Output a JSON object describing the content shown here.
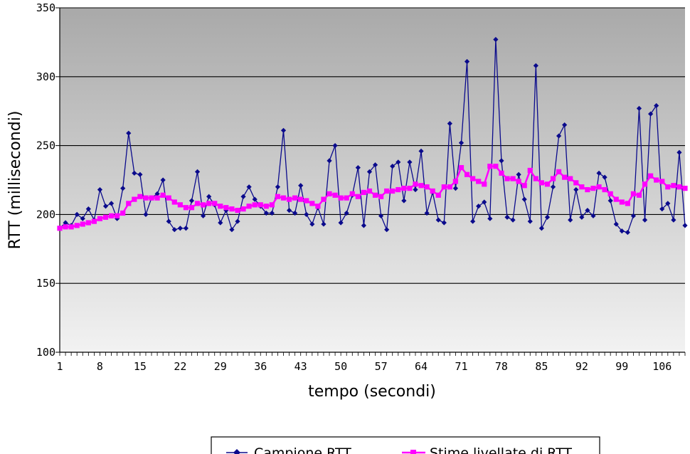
{
  "chart_data": {
    "type": "line",
    "title": "",
    "xlabel": "tempo (secondi)",
    "ylabel": "RTT (millisecondi)",
    "ylim": [
      100,
      350
    ],
    "yticks": [
      100,
      150,
      200,
      250,
      300,
      350
    ],
    "xtick_labels": [
      "1",
      "8",
      "15",
      "22",
      "29",
      "36",
      "43",
      "50",
      "57",
      "64",
      "71",
      "78",
      "85",
      "92",
      "99",
      "106"
    ],
    "grid": "horizontal",
    "legend_position": "bottom",
    "background": "vertical gradient gray to white",
    "colors": {
      "sample": "#0a0a8c",
      "estimate": "#ff00ff",
      "plot_bg_top": "#a9a9a9",
      "plot_bg_bottom": "#f2f2f2"
    },
    "x": [
      1,
      2,
      3,
      4,
      5,
      6,
      7,
      8,
      9,
      10,
      11,
      12,
      13,
      14,
      15,
      16,
      17,
      18,
      19,
      20,
      21,
      22,
      23,
      24,
      25,
      26,
      27,
      28,
      29,
      30,
      31,
      32,
      33,
      34,
      35,
      36,
      37,
      38,
      39,
      40,
      41,
      42,
      43,
      44,
      45,
      46,
      47,
      48,
      49,
      50,
      51,
      52,
      53,
      54,
      55,
      56,
      57,
      58,
      59,
      60,
      61,
      62,
      63,
      64,
      65,
      66,
      67,
      68,
      69,
      70,
      71,
      72,
      73,
      74,
      75,
      76,
      77,
      78,
      79,
      80,
      81,
      82,
      83,
      84,
      85,
      86,
      87,
      88,
      89,
      90,
      91,
      92,
      93,
      94,
      95,
      96,
      97,
      98,
      99,
      100,
      101,
      102,
      103,
      104,
      105,
      106,
      107,
      108,
      109,
      110
    ],
    "series": [
      {
        "name": "Campione RTT",
        "marker": "diamond",
        "values": [
          190,
          194,
          192,
          200,
          197,
          204,
          196,
          218,
          206,
          208,
          197,
          219,
          259,
          230,
          229,
          200,
          212,
          215,
          225,
          195,
          189,
          190,
          190,
          210,
          231,
          199,
          213,
          207,
          194,
          203,
          189,
          195,
          213,
          220,
          211,
          206,
          201,
          201,
          220,
          261,
          203,
          201,
          221,
          200,
          193,
          205,
          193,
          239,
          250,
          194,
          201,
          214,
          234,
          192,
          231,
          236,
          199,
          189,
          235,
          238,
          210,
          238,
          218,
          246,
          201,
          216,
          196,
          194,
          266,
          219,
          252,
          311,
          195,
          206,
          209,
          197,
          327,
          239,
          198,
          196,
          229,
          211,
          195,
          308,
          190,
          198,
          220,
          257,
          265,
          196,
          218,
          198,
          203,
          199,
          230,
          227,
          210,
          193,
          188,
          187,
          199,
          277,
          196,
          273,
          279,
          204,
          208,
          196,
          245,
          192
        ]
      },
      {
        "name": "Stime livellate di RTT",
        "marker": "square",
        "values": [
          190,
          191,
          191,
          192,
          193,
          194,
          195,
          197,
          198,
          199,
          199,
          201,
          208,
          211,
          213,
          212,
          212,
          212,
          214,
          212,
          209,
          207,
          205,
          205,
          208,
          207,
          208,
          208,
          206,
          205,
          204,
          203,
          204,
          206,
          207,
          207,
          206,
          207,
          213,
          212,
          211,
          212,
          211,
          210,
          208,
          206,
          211,
          215,
          214,
          212,
          212,
          215,
          213,
          216,
          217,
          214,
          213,
          217,
          217,
          218,
          219,
          219,
          222,
          221,
          220,
          217,
          214,
          220,
          220,
          224,
          234,
          229,
          226,
          224,
          222,
          235,
          235,
          230,
          226,
          226,
          224,
          221,
          232,
          226,
          223,
          222,
          226,
          231,
          227,
          226,
          223,
          220,
          218,
          219,
          220,
          218,
          215,
          211,
          209,
          208,
          215,
          214,
          222,
          228,
          225,
          224,
          220,
          221,
          220,
          219
        ]
      }
    ]
  }
}
